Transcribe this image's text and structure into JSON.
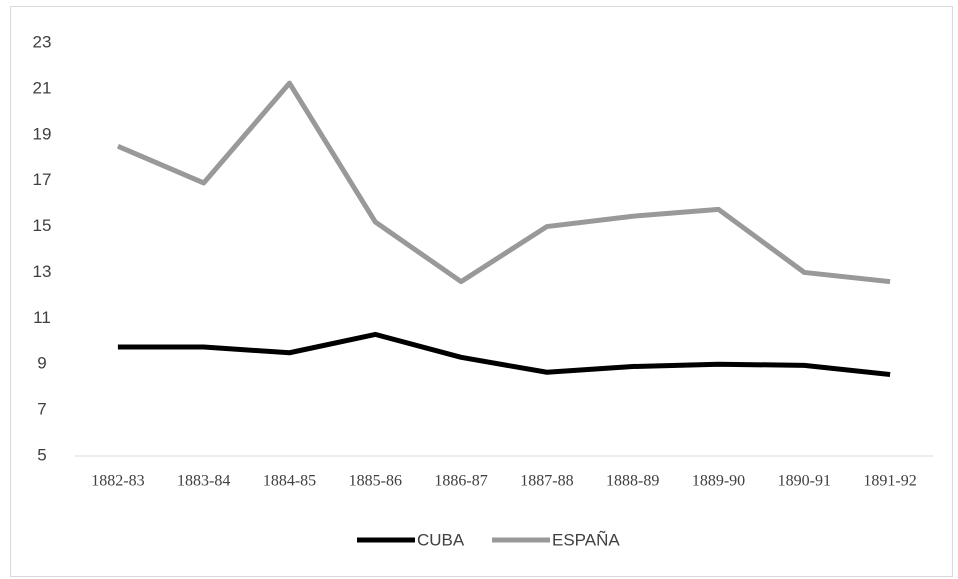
{
  "chart_data": {
    "type": "line",
    "categories": [
      "1882-83",
      "1883-84",
      "1884-85",
      "1885-86",
      "1886-87",
      "1887-88",
      "1888-89",
      "1889-90",
      "1890-91",
      "1891-92"
    ],
    "series": [
      {
        "name": "CUBA",
        "color": "#000000",
        "values": [
          9.75,
          9.75,
          9.5,
          10.3,
          9.3,
          8.65,
          8.9,
          9.0,
          8.95,
          8.55
        ]
      },
      {
        "name": "ESPAÑA",
        "color": "#999999",
        "values": [
          18.5,
          16.9,
          21.25,
          15.2,
          12.6,
          15.0,
          15.45,
          15.75,
          13.0,
          12.6
        ]
      }
    ],
    "ylim": [
      5,
      23
    ],
    "yticks": [
      5,
      7,
      9,
      11,
      13,
      15,
      17,
      19,
      21,
      23
    ],
    "grid": false,
    "legend": "bottom"
  }
}
